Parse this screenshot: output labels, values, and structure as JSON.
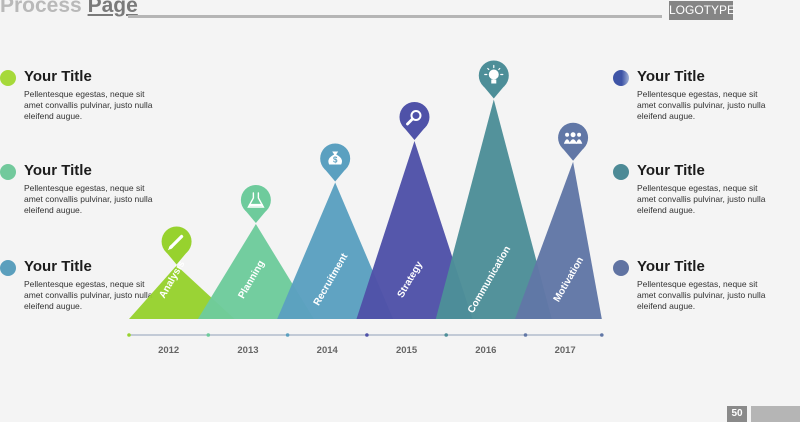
{
  "header": {
    "title_a": "Process",
    "title_b": "Page",
    "logo": "LOGOTYPE"
  },
  "left_items": [
    {
      "title": "Your Title",
      "desc": "Pellentesque egestas, neque sit amet convallis pulvinar, justo nulla eleifend augue.",
      "color": "#a6d93a"
    },
    {
      "title": "Your Title",
      "desc": "Pellentesque egestas, neque sit amet convallis pulvinar, justo nulla eleifend augue.",
      "color": "#72c99c"
    },
    {
      "title": "Your Title",
      "desc": "Pellentesque egestas, neque sit amet convallis pulvinar, justo nulla eleifend augue.",
      "color": "#5b9fbd"
    }
  ],
  "right_items": [
    {
      "title": "Your Title",
      "desc": "Pellentesque egestas, neque sit amet convallis pulvinar, justo nulla eleifend augue.",
      "color": "#3e54a6"
    },
    {
      "title": "Your Title",
      "desc": "Pellentesque egestas, neque sit amet convallis pulvinar, justo nulla eleifend augue.",
      "color": "#4d8a96"
    },
    {
      "title": "Your Title",
      "desc": "Pellentesque egestas, neque sit amet convallis pulvinar, justo nulla eleifend augue.",
      "color": "#6073a2"
    }
  ],
  "chart_data": {
    "type": "triangle-process",
    "steps": [
      {
        "label": "Analysis",
        "year": "2012",
        "color": "#97d22e",
        "icon": "pencil-icon",
        "level": 1
      },
      {
        "label": "Planning",
        "year": "2013",
        "color": "#6ecb9c",
        "icon": "flask-icon",
        "level": 2
      },
      {
        "label": "Recruitment",
        "year": "2014",
        "color": "#5ba0c0",
        "icon": "money-bag-icon",
        "level": 3
      },
      {
        "label": "Strategy",
        "year": "2015",
        "color": "#4f52a8",
        "icon": "magnifier-icon",
        "level": 4
      },
      {
        "label": "Communication",
        "year": "2016",
        "color": "#4d8e98",
        "icon": "lightbulb-icon",
        "level": 5
      },
      {
        "label": "Motivation",
        "year": "2017",
        "color": "#6177a6",
        "icon": "team-icon",
        "level": 3.5
      }
    ]
  },
  "page_number": "50"
}
